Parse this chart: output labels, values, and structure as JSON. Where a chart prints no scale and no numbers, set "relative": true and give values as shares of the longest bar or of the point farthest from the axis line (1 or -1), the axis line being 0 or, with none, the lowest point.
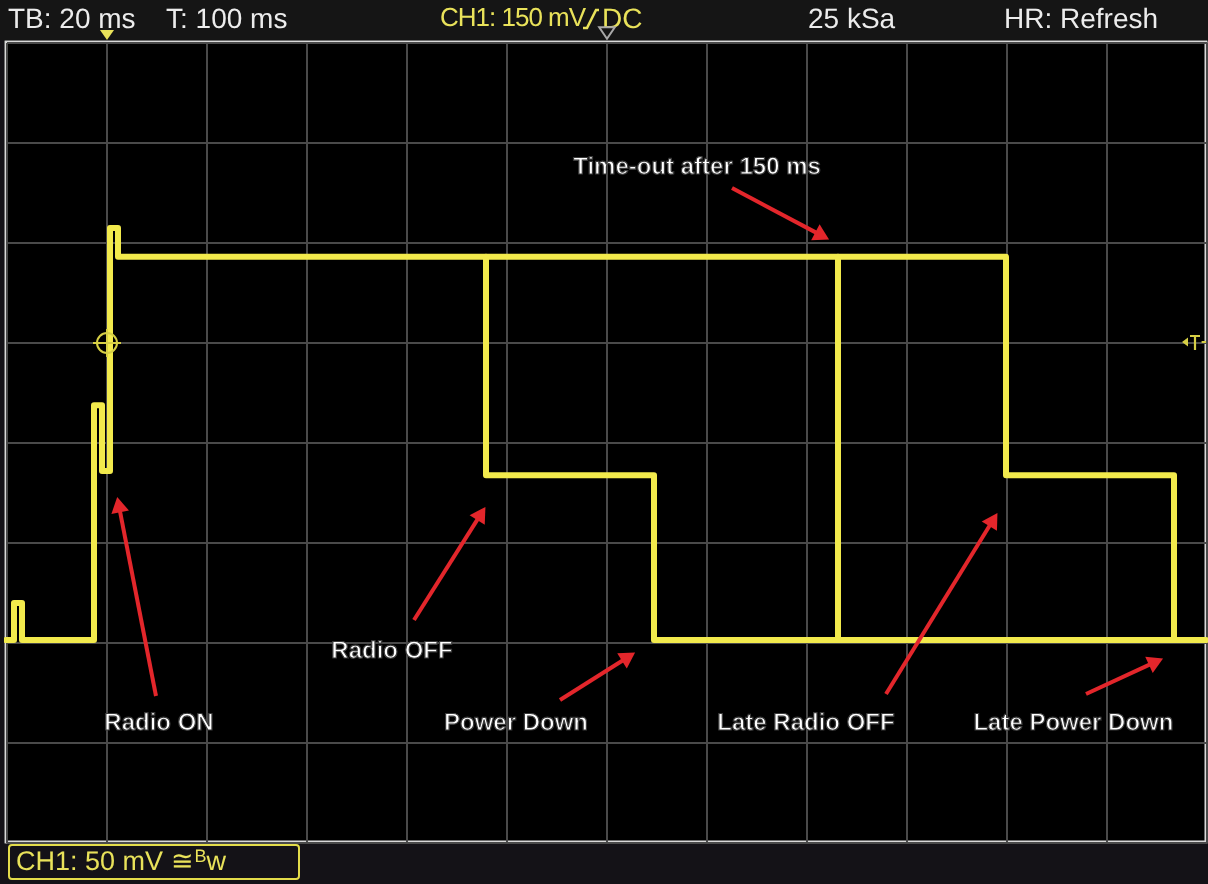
{
  "chart_data": {
    "type": "step",
    "relative": true,
    "grid": true,
    "categories": [
      null,
      null,
      null,
      null,
      null,
      null,
      null,
      null,
      null,
      null,
      null,
      null,
      null,
      null,
      null,
      null,
      null,
      null,
      null,
      null,
      null,
      null,
      null,
      null,
      null,
      null,
      null,
      null,
      null,
      null,
      null,
      null,
      null,
      null,
      null,
      null,
      null,
      null,
      null,
      null,
      null,
      null,
      null,
      null,
      null,
      null,
      null,
      null,
      null,
      null,
      null,
      null,
      null,
      null,
      null,
      null,
      null,
      null,
      null,
      null,
      null,
      null,
      null,
      null,
      null,
      null,
      null,
      null,
      null,
      null,
      null,
      null,
      null,
      null,
      null,
      null,
      null,
      null,
      null,
      null,
      null,
      null,
      null,
      null,
      null,
      null,
      null,
      null,
      null,
      null,
      null,
      null,
      null,
      null,
      null,
      null,
      null,
      null,
      null,
      null,
      null,
      null,
      null,
      null,
      null,
      null,
      null,
      null,
      null,
      null,
      null,
      null,
      null,
      null,
      null,
      null,
      null,
      null,
      null,
      null,
      null,
      null,
      null,
      null,
      null,
      null,
      null,
      null,
      null,
      null,
      null,
      null,
      null,
      null,
      null,
      null,
      null,
      null,
      null,
      null,
      null,
      null,
      null,
      null,
      null,
      null,
      null,
      null,
      null,
      null,
      null
    ],
    "series": [
      {
        "color": "#f2ea4c",
        "values": [
          0,
          0.09,
          0,
          0,
          0,
          0,
          0,
          0,
          0,
          0,
          0,
          0.57,
          0.41,
          1,
          0.93,
          0.93,
          0.93,
          0.93,
          0.93,
          0.93,
          0.93,
          0.93,
          0.93,
          0.93,
          0.93,
          0.93,
          0.93,
          0.93,
          0.93,
          0.93,
          0.93,
          0.93,
          0.93,
          0.93,
          0.93,
          0.93,
          0.93,
          0.93,
          0.93,
          0.93,
          0.93,
          0.93,
          0.93,
          0.93,
          0.93,
          0.93,
          0.93,
          0.93,
          0.93,
          0.93,
          0.93,
          0.93,
          0.93,
          0.93,
          0.93,
          0.93,
          0.93,
          0.93,
          0.93,
          0.93,
          0.4,
          0.4,
          0.4,
          0.4,
          0.4,
          0.4,
          0.4,
          0.4,
          0.4,
          0.4,
          0.4,
          0.4,
          0.4,
          0.4,
          0.4,
          0.4,
          0.4,
          0.4,
          0.4,
          0.4,
          0.4,
          0,
          0,
          0,
          0,
          0,
          0,
          0,
          0,
          0,
          0,
          0,
          0,
          0,
          0,
          0,
          0,
          0,
          0,
          0,
          0,
          0,
          0,
          0,
          0,
          0,
          0,
          0,
          0,
          0,
          0,
          0,
          0,
          0,
          0,
          0,
          0,
          0,
          0,
          0,
          0,
          0,
          0,
          0,
          0,
          0,
          0,
          0,
          0,
          0,
          0,
          0,
          0,
          0,
          0,
          0,
          0,
          0,
          0,
          0,
          0,
          0,
          0,
          0,
          0,
          0,
          0,
          0,
          0,
          0,
          0
        ]
      },
      {
        "color": "#f2ea4c",
        "values": [
          null,
          null,
          null,
          null,
          null,
          null,
          null,
          null,
          null,
          null,
          null,
          null,
          null,
          null,
          null,
          null,
          null,
          null,
          null,
          null,
          null,
          null,
          null,
          null,
          null,
          null,
          null,
          null,
          null,
          null,
          null,
          null,
          null,
          null,
          null,
          null,
          null,
          null,
          null,
          null,
          null,
          null,
          null,
          null,
          null,
          null,
          null,
          null,
          null,
          null,
          null,
          null,
          null,
          null,
          null,
          null,
          null,
          null,
          null,
          null,
          0.93,
          0.93,
          0.93,
          0.93,
          0.93,
          0.93,
          0.93,
          0.93,
          0.93,
          0.93,
          0.93,
          0.93,
          0.93,
          0.93,
          0.93,
          0.93,
          0.93,
          0.93,
          0.93,
          0.93,
          0.93,
          0.93,
          0.93,
          0.93,
          0.93,
          0.93,
          0.93,
          0.93,
          0.93,
          0.93,
          0.93,
          0.93,
          0.93,
          0.93,
          0.93,
          0.93,
          0.93,
          0.93,
          0.93,
          0.93,
          0.93,
          0.93,
          0.93,
          0.93,
          0,
          null,
          null,
          null,
          null,
          null,
          null,
          null,
          null,
          null,
          null,
          null,
          null,
          null,
          null,
          null,
          null,
          null,
          null,
          null,
          null,
          null,
          null,
          null,
          null,
          null,
          null,
          null,
          null,
          null,
          null,
          null,
          null,
          null,
          null,
          null,
          null,
          null,
          null,
          null,
          null,
          null,
          null,
          null,
          null,
          null,
          null
        ]
      },
      {
        "color": "#f2ea4c",
        "values": [
          null,
          null,
          null,
          null,
          null,
          null,
          null,
          null,
          null,
          null,
          null,
          null,
          null,
          null,
          null,
          null,
          null,
          null,
          null,
          null,
          null,
          null,
          null,
          null,
          null,
          null,
          null,
          null,
          null,
          null,
          null,
          null,
          null,
          null,
          null,
          null,
          null,
          null,
          null,
          null,
          null,
          null,
          null,
          null,
          null,
          null,
          null,
          null,
          null,
          null,
          null,
          null,
          null,
          null,
          null,
          null,
          null,
          null,
          null,
          null,
          null,
          null,
          null,
          null,
          null,
          null,
          null,
          null,
          null,
          null,
          null,
          null,
          null,
          null,
          null,
          null,
          null,
          null,
          null,
          null,
          null,
          null,
          null,
          null,
          null,
          null,
          null,
          null,
          null,
          null,
          null,
          null,
          null,
          null,
          null,
          null,
          null,
          null,
          null,
          null,
          null,
          null,
          null,
          null,
          0.93,
          0.93,
          0.93,
          0.93,
          0.93,
          0.93,
          0.93,
          0.93,
          0.93,
          0.93,
          0.93,
          0.93,
          0.93,
          0.93,
          0.93,
          0.93,
          0.93,
          0.93,
          0.93,
          0.93,
          0.93,
          0.4,
          0.4,
          0.4,
          0.4,
          0.4,
          0.4,
          0.4,
          0.4,
          0.4,
          0.4,
          0.4,
          0.4,
          0.4,
          0.4,
          0.4,
          0.4,
          0.4,
          0.4,
          0.4,
          0.4,
          0.4,
          0,
          null,
          null,
          null,
          null
        ]
      }
    ],
    "annotations": [
      "TB: 20 ms",
      "T: 100 ms",
      "CH1: 150 mV",
      "DC",
      "25 kSa",
      "HR: Refresh",
      "Time-out after 150 ms",
      "Radio OFF",
      "Radio ON",
      "Power Down",
      "Late Radio OFF",
      "Late Power Down",
      "CH1: 50 mV ≅$^{B}$w"
    ]
  }
}
